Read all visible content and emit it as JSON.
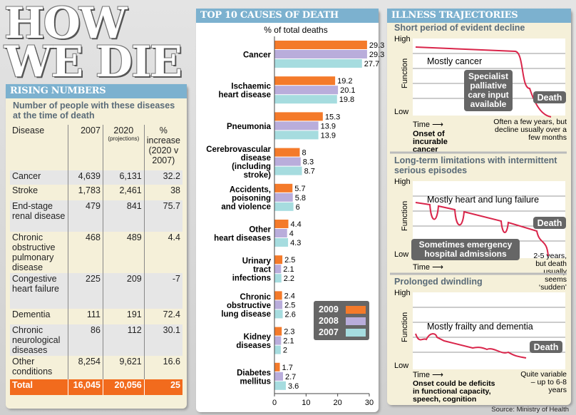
{
  "title": "HOW WE DIE",
  "rising": {
    "header": "RISING NUMBERS",
    "subtitle": "Number of people with these diseases at the time of death",
    "columns": [
      "Disease",
      "2007",
      "2020",
      "(projections)",
      "% increase (2020 v 2007)"
    ],
    "rows": [
      [
        "Cancer",
        "4,639",
        "6,131",
        "32.2"
      ],
      [
        "Stroke",
        "1,783",
        "2,461",
        "38"
      ],
      [
        "End-stage renal disease",
        "479",
        "841",
        "75.7"
      ],
      [
        "Chronic obstructive pulmonary disease",
        "468",
        "489",
        "4.4"
      ],
      [
        "Congestive heart failure",
        "225",
        "209",
        "-7"
      ],
      [
        "Dementia",
        "111",
        "191",
        "72.4"
      ],
      [
        "Chronic neurological diseases",
        "86",
        "112",
        "30.1"
      ],
      [
        "Other conditions",
        "8,254",
        "9,621",
        "16.6"
      ]
    ],
    "total": [
      "Total",
      "16,045",
      "20,056",
      "25"
    ]
  },
  "chart_data": {
    "type": "bar",
    "orientation": "horizontal",
    "title": "TOP 10 CAUSES OF DEATH",
    "xlabel": "% of total deaths",
    "xlim": [
      0,
      30
    ],
    "xticks": [
      0,
      10,
      20,
      30
    ],
    "categories": [
      "Cancer",
      "Ischaemic heart disease",
      "Pneumonia",
      "Cerebrovascular disease (including stroke)",
      "Accidents, poisoning and violence",
      "Other heart diseases",
      "Urinary tract infections",
      "Chronic obstructive lung disease",
      "Kidney diseases",
      "Diabetes mellitus"
    ],
    "category_lines": [
      [
        "Cancer"
      ],
      [
        "Ischaemic",
        "heart disease"
      ],
      [
        "Pneumonia"
      ],
      [
        "Cerebrovascular",
        "disease",
        "(including",
        "stroke)"
      ],
      [
        "Accidents,",
        "poisoning",
        "and violence"
      ],
      [
        "Other",
        "heart diseases"
      ],
      [
        "Urinary",
        "tract",
        "infections"
      ],
      [
        "Chronic",
        "obstructive",
        "lung disease"
      ],
      [
        "Kidney",
        "diseases"
      ],
      [
        "Diabetes",
        "mellitus"
      ]
    ],
    "series": [
      {
        "name": "2009",
        "color": "#f47a2a",
        "values": [
          29.3,
          19.2,
          15.3,
          8,
          5.7,
          4.4,
          2.5,
          2.4,
          2.3,
          1.7
        ]
      },
      {
        "name": "2008",
        "color": "#b9addb",
        "values": [
          29.3,
          20.1,
          13.9,
          8.3,
          5.8,
          4,
          2.1,
          2.5,
          2.1,
          2.7
        ]
      },
      {
        "name": "2007",
        "color": "#a6dcdf",
        "values": [
          27.7,
          19.8,
          13.9,
          8.7,
          6,
          4.3,
          2.2,
          2.6,
          2,
          3.6
        ]
      }
    ],
    "legend": "bottom-right",
    "grid": false
  },
  "trajectories": {
    "header": "ILLNESS TRAJECTORIES",
    "high": "High",
    "low": "Low",
    "ylabel": "Function",
    "time": "Time ⟶",
    "death": "Death",
    "panels": [
      {
        "title": "Short period of evident decline",
        "label": "Mostly cancer",
        "callout": "Specialist palliative care input available",
        "onset": "Onset of incurable cancer",
        "note": "Often a few years, but decline usually over a few months"
      },
      {
        "title": "Long-term limitations with intermittent serious episodes",
        "label": "Mostly heart and lung failure",
        "callout": "Sometimes emergency hospital admissions",
        "note": "2-5 years, but death usually seems ‘sudden’"
      },
      {
        "title": "Prolonged dwindling",
        "label": "Mostly frailty and dementia",
        "onset": "Onset could be deficits in functional capacity, speech, cognition",
        "note": "Quite variable – up to 6-8 years"
      }
    ]
  },
  "source": "Source: Ministry of Health"
}
